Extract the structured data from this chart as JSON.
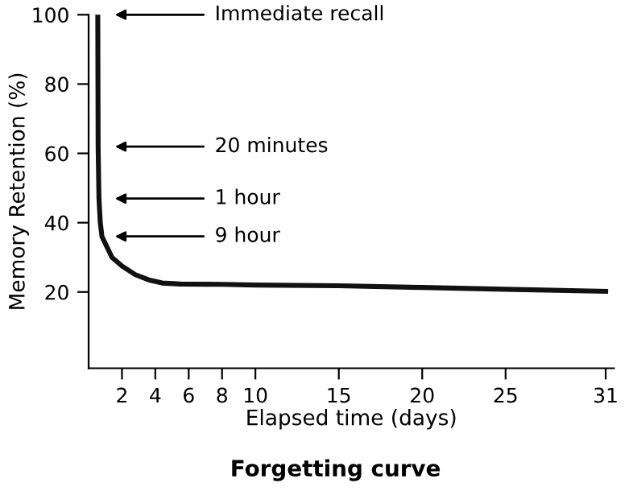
{
  "chart_data": {
    "type": "line",
    "title": "Forgetting curve",
    "xlabel": "Elapsed time (days)",
    "ylabel": "Memory Retention (%)",
    "x": [
      0.55,
      0.56,
      0.57,
      0.62,
      0.7,
      0.8,
      1.4,
      2.0,
      2.8,
      3.6,
      4.4,
      5.5,
      8,
      10,
      15,
      20,
      25,
      31
    ],
    "series": [
      {
        "color": "#111111",
        "values": [
          100,
          80,
          62,
          47,
          40,
          36,
          30,
          27.5,
          25,
          23.5,
          22.6,
          22.3,
          22.2,
          22,
          21.8,
          21.3,
          20.8,
          20.2
        ]
      }
    ],
    "xlim": [
      0,
      31.5
    ],
    "ylim": [
      -2,
      100
    ],
    "xticks": [
      2,
      4,
      6,
      8,
      10,
      15,
      20,
      25,
      31
    ],
    "yticks": [
      20,
      40,
      60,
      80,
      100
    ],
    "grid": false,
    "legend": false,
    "marker": "none",
    "line_style": "solid",
    "annotations": [
      "Immediate recall",
      "20 minutes",
      "1 hour",
      "9 hour"
    ]
  }
}
